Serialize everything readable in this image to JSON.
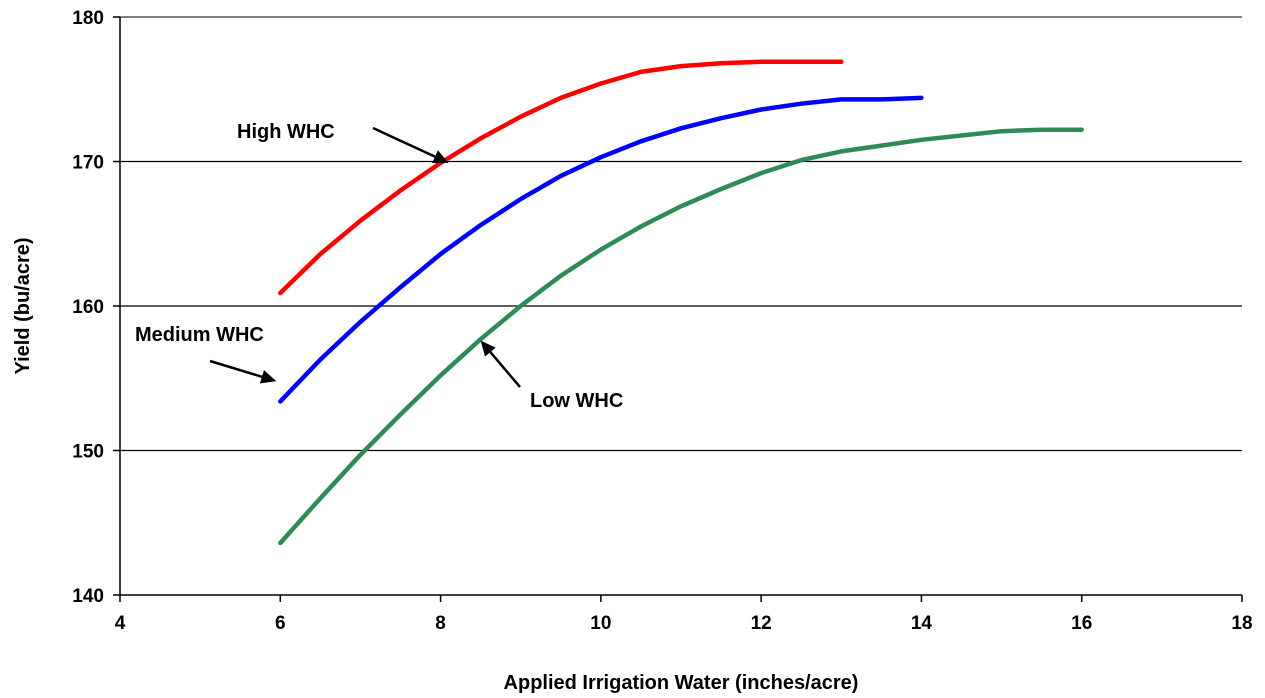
{
  "chart_data": {
    "type": "line",
    "title": "",
    "xlabel": "Applied Irrigation Water (inches/acre)",
    "ylabel": "Yield (bu/acre)",
    "xlim": [
      4,
      18
    ],
    "ylim": [
      140,
      180
    ],
    "x_ticks": [
      "4",
      "6",
      "8",
      "10",
      "12",
      "14",
      "16",
      "18"
    ],
    "y_ticks": [
      "140",
      "150",
      "160",
      "170",
      "180"
    ],
    "grid": "horizontal",
    "legend": "none",
    "series": [
      {
        "name": "High WHC",
        "color": "#ff0000",
        "x": [
          6,
          6.5,
          7,
          7.5,
          8,
          8.5,
          9,
          9.5,
          10,
          10.5,
          11,
          11.5,
          12,
          12.5,
          13
        ],
        "y": [
          160.9,
          163.6,
          165.9,
          168.0,
          169.9,
          171.6,
          173.1,
          174.4,
          175.4,
          176.2,
          176.6,
          176.8,
          176.9,
          176.9,
          176.9
        ]
      },
      {
        "name": "Medium WHC",
        "color": "#0000ff",
        "x": [
          6,
          6.5,
          7,
          7.5,
          8,
          8.5,
          9,
          9.5,
          10,
          10.5,
          11,
          11.5,
          12,
          12.5,
          13,
          13.5,
          14
        ],
        "y": [
          153.4,
          156.3,
          158.9,
          161.3,
          163.6,
          165.6,
          167.4,
          169.0,
          170.3,
          171.4,
          172.3,
          173.0,
          173.6,
          174.0,
          174.3,
          174.3,
          174.4
        ]
      },
      {
        "name": "Low WHC",
        "color": "#2e8b57",
        "x": [
          6,
          6.5,
          7,
          7.5,
          8,
          8.5,
          9,
          9.5,
          10,
          10.5,
          11,
          11.5,
          12,
          12.5,
          13,
          13.5,
          14,
          14.5,
          15,
          15.5,
          16
        ],
        "y": [
          143.6,
          146.7,
          149.7,
          152.5,
          155.2,
          157.7,
          160.0,
          162.1,
          163.9,
          165.5,
          166.9,
          168.1,
          169.2,
          170.1,
          170.7,
          171.1,
          171.5,
          171.8,
          172.1,
          172.2,
          172.2
        ]
      }
    ],
    "annotations": [
      {
        "text": "High WHC",
        "points_to": {
          "x": 8.1,
          "y": 169.9
        }
      },
      {
        "text": "Medium WHC",
        "points_to": {
          "x": 5.95,
          "y": 154.8
        }
      },
      {
        "text": "Low WHC",
        "points_to": {
          "x": 8.5,
          "y": 157.6
        }
      }
    ]
  }
}
